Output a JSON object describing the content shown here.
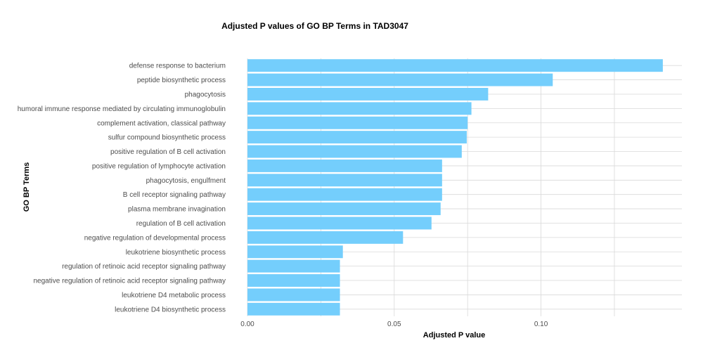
{
  "chart_data": {
    "type": "bar",
    "orientation": "horizontal",
    "title": "Adjusted P values of GO BP Terms in TAD3047",
    "xlabel": "Adjusted P value",
    "ylabel": "GO BP Terms",
    "xlim": [
      0,
      0.148
    ],
    "xticks": [
      0,
      0.05,
      0.1
    ],
    "xtick_labels": [
      "0.00",
      "0.05",
      "0.10"
    ],
    "grid": true,
    "bar_color": "#74CEFC",
    "grid_color": "#d9d9d9",
    "categories": [
      "defense response to bacterium",
      "peptide biosynthetic process",
      "phagocytosis",
      "humoral immune response mediated by circulating immunoglobulin",
      "complement activation, classical pathway",
      "sulfur compound biosynthetic process",
      "positive regulation of B cell activation",
      "positive regulation of lymphocyte activation",
      "phagocytosis, engulfment",
      "B cell receptor signaling pathway",
      "plasma membrane invagination",
      "regulation of B cell activation",
      "negative regulation of developmental process",
      "leukotriene biosynthetic process",
      "regulation of retinoic acid receptor signaling pathway",
      "negative regulation of retinoic acid receptor signaling pathway",
      "leukotriene D4 metabolic process",
      "leukotriene D4 biosynthetic process"
    ],
    "values": [
      0.1415,
      0.104,
      0.082,
      0.0763,
      0.075,
      0.0747,
      0.073,
      0.0663,
      0.0663,
      0.0663,
      0.0658,
      0.0627,
      0.053,
      0.0325,
      0.0315,
      0.0315,
      0.0315,
      0.0315
    ]
  }
}
